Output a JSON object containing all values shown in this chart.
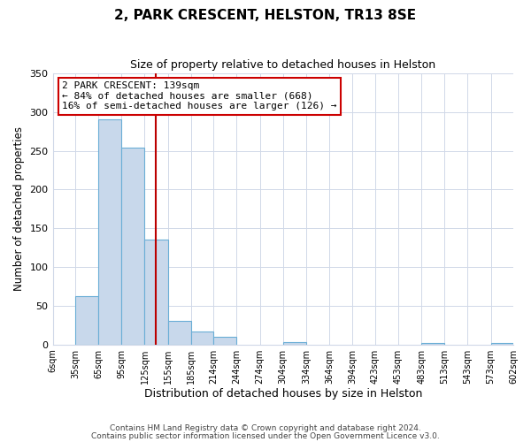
{
  "title": "2, PARK CRESCENT, HELSTON, TR13 8SE",
  "subtitle": "Size of property relative to detached houses in Helston",
  "xlabel": "Distribution of detached houses by size in Helston",
  "ylabel": "Number of detached properties",
  "bin_edges": [
    6,
    35,
    65,
    95,
    125,
    155,
    185,
    214,
    244,
    274,
    304,
    334,
    364,
    394,
    423,
    453,
    483,
    513,
    543,
    573,
    602
  ],
  "bin_labels": [
    "6sqm",
    "35sqm",
    "65sqm",
    "95sqm",
    "125sqm",
    "155sqm",
    "185sqm",
    "214sqm",
    "244sqm",
    "274sqm",
    "304sqm",
    "334sqm",
    "364sqm",
    "394sqm",
    "423sqm",
    "453sqm",
    "483sqm",
    "513sqm",
    "543sqm",
    "573sqm",
    "602sqm"
  ],
  "counts": [
    0,
    62,
    291,
    254,
    135,
    30,
    17,
    10,
    0,
    0,
    3,
    0,
    0,
    0,
    0,
    0,
    2,
    0,
    0,
    2
  ],
  "bar_color": "#c8d8eb",
  "bar_edge_color": "#6aaed6",
  "vline_x": 139,
  "vline_color": "#bb0000",
  "annotation_text": "2 PARK CRESCENT: 139sqm\n← 84% of detached houses are smaller (668)\n16% of semi-detached houses are larger (126) →",
  "annotation_box_color": "#ffffff",
  "annotation_box_edge_color": "#cc0000",
  "ylim": [
    0,
    350
  ],
  "yticks": [
    0,
    50,
    100,
    150,
    200,
    250,
    300,
    350
  ],
  "footer1": "Contains HM Land Registry data © Crown copyright and database right 2024.",
  "footer2": "Contains public sector information licensed under the Open Government Licence v3.0.",
  "background_color": "#ffffff",
  "grid_color": "#d0d8e8"
}
